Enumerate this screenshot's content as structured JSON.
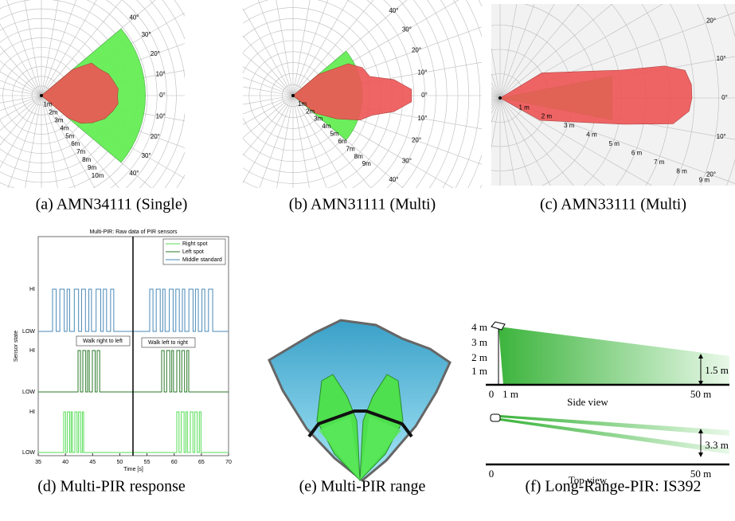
{
  "panels": [
    {
      "caption": "(a) AMN34111 (Single)",
      "angle_labels": [
        "40°",
        "30°",
        "20°",
        "10°",
        "0°",
        "10°",
        "20°",
        "30°",
        "40°"
      ],
      "distance_labels": [
        "1m",
        "2m",
        "3m",
        "4m",
        "5m",
        "6m",
        "7m",
        "8m",
        "9m",
        "10m"
      ]
    },
    {
      "caption": "(b) AMN31111 (Multi)",
      "angle_labels": [
        "40°",
        "30°",
        "20°",
        "10°",
        "0°",
        "10°",
        "20°",
        "30°",
        "40°"
      ],
      "distance_labels": [
        "1m",
        "2m",
        "3m",
        "4m",
        "5m",
        "6m",
        "7m",
        "8m",
        "9m"
      ]
    },
    {
      "caption": "(c) AMN33111 (Multi)",
      "angle_labels": [
        "20°",
        "10°",
        "0°",
        "10°",
        "20°"
      ],
      "distance_labels": [
        "1 m",
        "2 m",
        "3 m",
        "4 m",
        "5 m",
        "6 m",
        "7 m",
        "8 m",
        "9 m"
      ]
    },
    {
      "caption": "(d) Multi-PIR response",
      "title": "Multi-PIR: Raw data of PIR sensors",
      "legend": [
        "Right spot",
        "Left spot",
        "Middle standard"
      ],
      "y_labels": [
        "HI",
        "LOW",
        "HI",
        "LOW",
        "HI",
        "LOW"
      ],
      "x_ticks": [
        "35",
        "40",
        "45",
        "50",
        "55",
        "60",
        "65",
        "70"
      ],
      "x_label": "Time [s]",
      "y_label": "Sensor state",
      "annotations": [
        "Walk right to left",
        "Walk left to right"
      ]
    },
    {
      "caption": "(e) Multi-PIR range"
    },
    {
      "caption": "(f) Long-Range-PIR: IS392",
      "side_y_labels": [
        "4 m",
        "3 m",
        "2 m",
        "1 m"
      ],
      "side_x_labels": [
        "0",
        "1 m",
        "50 m"
      ],
      "side_height": "1.5 m",
      "side_title": "Side view",
      "top_width": "3.3 m",
      "top_x_labels": [
        "0",
        "50 m"
      ],
      "top_title": "Top view"
    }
  ]
}
